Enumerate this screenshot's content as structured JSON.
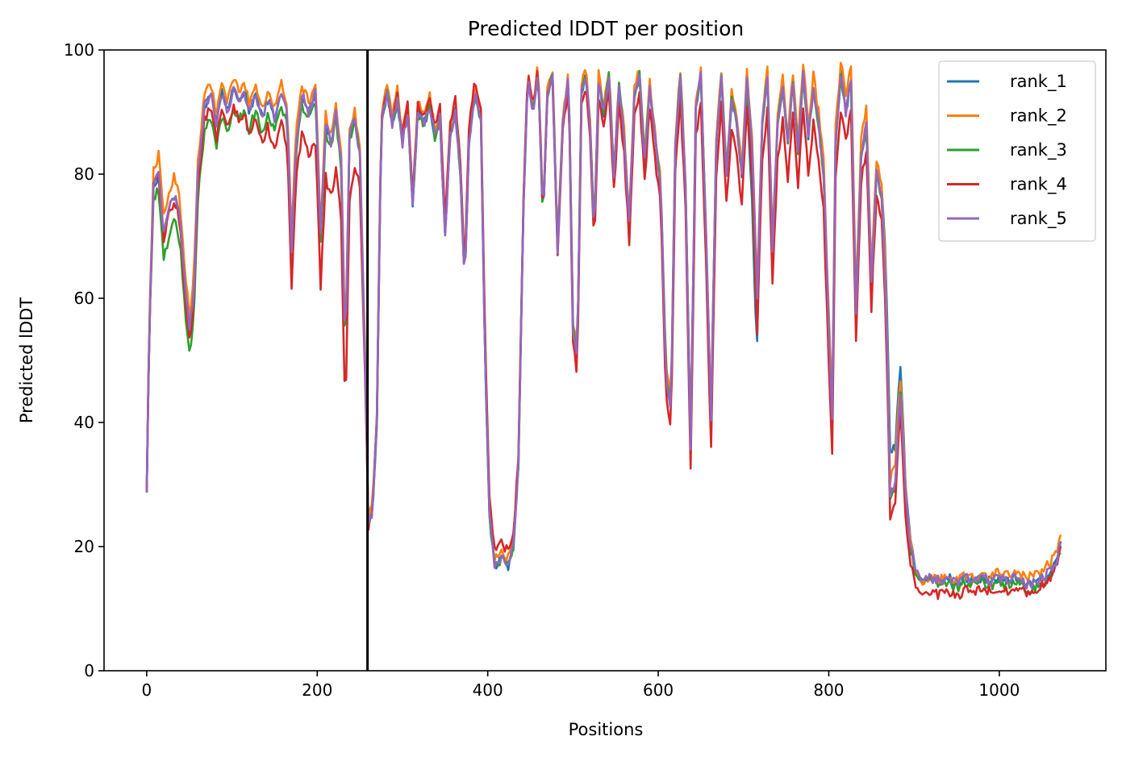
{
  "chart_data": {
    "type": "line",
    "title": "Predicted lDDT per position",
    "xlabel": "Positions",
    "ylabel": "Predicted lDDT",
    "xlim": [
      -50,
      1125
    ],
    "ylim": [
      0,
      100
    ],
    "xticks": [
      0,
      200,
      400,
      600,
      800,
      1000
    ],
    "yticks": [
      0,
      20,
      40,
      60,
      80,
      100
    ],
    "grid": false,
    "legend_position": "top-right",
    "vertical_line": {
      "x": 259,
      "color": "#000000"
    },
    "series": [
      {
        "name": "rank_1",
        "color": "#1f77b4",
        "offset": [
          [
            0,
            0
          ],
          [
            700,
            0
          ],
          [
            713,
            -12
          ],
          [
            720,
            0
          ],
          [
            860,
            0
          ],
          [
            870,
            8
          ],
          [
            900,
            0
          ],
          [
            1075,
            0
          ]
        ]
      },
      {
        "name": "rank_2",
        "color": "#ff7f0e",
        "offset": [
          [
            0,
            0
          ],
          [
            10,
            3
          ],
          [
            30,
            3
          ],
          [
            60,
            2
          ],
          [
            100,
            1.5
          ],
          [
            300,
            1.5
          ],
          [
            500,
            1
          ],
          [
            700,
            1
          ],
          [
            880,
            3
          ],
          [
            900,
            0
          ],
          [
            1075,
            1.5
          ]
        ]
      },
      {
        "name": "rank_3",
        "color": "#2ca02c",
        "offset": [
          [
            0,
            0
          ],
          [
            20,
            -4
          ],
          [
            70,
            -4
          ],
          [
            110,
            -3
          ],
          [
            260,
            0
          ],
          [
            700,
            0
          ],
          [
            713,
            -8
          ],
          [
            720,
            0
          ],
          [
            1075,
            -1
          ]
        ]
      },
      {
        "name": "rank_4",
        "color": "#d62728",
        "offset": [
          [
            0,
            0
          ],
          [
            160,
            -5
          ],
          [
            200,
            -8
          ],
          [
            240,
            -10
          ],
          [
            260,
            0
          ],
          [
            410,
            3
          ],
          [
            500,
            -2
          ],
          [
            640,
            -4
          ],
          [
            670,
            -5
          ],
          [
            800,
            -6
          ],
          [
            860,
            -3
          ],
          [
            1075,
            -1
          ]
        ]
      },
      {
        "name": "rank_5",
        "color": "#9467bd",
        "offset": [
          [
            0,
            0
          ],
          [
            1075,
            0
          ]
        ]
      }
    ],
    "base_profile": [
      [
        0,
        29.5
      ],
      [
        3,
        55
      ],
      [
        8,
        78
      ],
      [
        14,
        80
      ],
      [
        20,
        70
      ],
      [
        26,
        74
      ],
      [
        33,
        77
      ],
      [
        39,
        73
      ],
      [
        45,
        62
      ],
      [
        50,
        55
      ],
      [
        55,
        60
      ],
      [
        60,
        80
      ],
      [
        68,
        91
      ],
      [
        75,
        93
      ],
      [
        82,
        88
      ],
      [
        88,
        93
      ],
      [
        95,
        90
      ],
      [
        102,
        94
      ],
      [
        108,
        92
      ],
      [
        115,
        93
      ],
      [
        120,
        90
      ],
      [
        128,
        93
      ],
      [
        135,
        89
      ],
      [
        142,
        92
      ],
      [
        150,
        89
      ],
      [
        158,
        93
      ],
      [
        165,
        90
      ],
      [
        170,
        68
      ],
      [
        175,
        85
      ],
      [
        182,
        93
      ],
      [
        190,
        90
      ],
      [
        198,
        93
      ],
      [
        204,
        70
      ],
      [
        210,
        88
      ],
      [
        216,
        85
      ],
      [
        222,
        90
      ],
      [
        228,
        82
      ],
      [
        233,
        50
      ],
      [
        238,
        86
      ],
      [
        244,
        89
      ],
      [
        250,
        83
      ],
      [
        257,
        45
      ],
      [
        260,
        23
      ],
      [
        265,
        26
      ],
      [
        270,
        40
      ],
      [
        275,
        88
      ],
      [
        282,
        93
      ],
      [
        288,
        88
      ],
      [
        294,
        92
      ],
      [
        300,
        85
      ],
      [
        306,
        90
      ],
      [
        312,
        75
      ],
      [
        318,
        90
      ],
      [
        325,
        88
      ],
      [
        332,
        91
      ],
      [
        338,
        86
      ],
      [
        344,
        89
      ],
      [
        350,
        70
      ],
      [
        356,
        86
      ],
      [
        362,
        90
      ],
      [
        368,
        80
      ],
      [
        373,
        62
      ],
      [
        378,
        85
      ],
      [
        385,
        93
      ],
      [
        392,
        88
      ],
      [
        397,
        50
      ],
      [
        402,
        25
      ],
      [
        408,
        17
      ],
      [
        416,
        18
      ],
      [
        424,
        17
      ],
      [
        430,
        20
      ],
      [
        436,
        33
      ],
      [
        442,
        75
      ],
      [
        447,
        96
      ],
      [
        453,
        90
      ],
      [
        459,
        97
      ],
      [
        465,
        72
      ],
      [
        470,
        93
      ],
      [
        476,
        96
      ],
      [
        482,
        68
      ],
      [
        488,
        88
      ],
      [
        495,
        96
      ],
      [
        500,
        55
      ],
      [
        505,
        50
      ],
      [
        510,
        93
      ],
      [
        515,
        96
      ],
      [
        520,
        88
      ],
      [
        525,
        70
      ],
      [
        530,
        95
      ],
      [
        536,
        90
      ],
      [
        542,
        96
      ],
      [
        548,
        80
      ],
      [
        554,
        94
      ],
      [
        560,
        86
      ],
      [
        566,
        72
      ],
      [
        572,
        93
      ],
      [
        578,
        96
      ],
      [
        584,
        82
      ],
      [
        590,
        94
      ],
      [
        596,
        86
      ],
      [
        603,
        78
      ],
      [
        609,
        48
      ],
      [
        615,
        42
      ],
      [
        620,
        85
      ],
      [
        626,
        96
      ],
      [
        632,
        78
      ],
      [
        638,
        36
      ],
      [
        644,
        90
      ],
      [
        650,
        96
      ],
      [
        656,
        70
      ],
      [
        662,
        40
      ],
      [
        668,
        85
      ],
      [
        674,
        96
      ],
      [
        680,
        80
      ],
      [
        686,
        92
      ],
      [
        692,
        88
      ],
      [
        698,
        80
      ],
      [
        704,
        96
      ],
      [
        710,
        85
      ],
      [
        716,
        60
      ],
      [
        722,
        88
      ],
      [
        728,
        96
      ],
      [
        734,
        68
      ],
      [
        740,
        88
      ],
      [
        746,
        94
      ],
      [
        752,
        85
      ],
      [
        758,
        95
      ],
      [
        764,
        84
      ],
      [
        770,
        96
      ],
      [
        776,
        86
      ],
      [
        782,
        94
      ],
      [
        788,
        88
      ],
      [
        794,
        80
      ],
      [
        800,
        55
      ],
      [
        804,
        40
      ],
      [
        808,
        85
      ],
      [
        814,
        96
      ],
      [
        820,
        90
      ],
      [
        826,
        95
      ],
      [
        832,
        58
      ],
      [
        838,
        83
      ],
      [
        844,
        88
      ],
      [
        850,
        62
      ],
      [
        856,
        80
      ],
      [
        862,
        76
      ],
      [
        867,
        60
      ],
      [
        872,
        28
      ],
      [
        878,
        30
      ],
      [
        884,
        45
      ],
      [
        890,
        28
      ],
      [
        896,
        20
      ],
      [
        902,
        16
      ],
      [
        910,
        14.5
      ],
      [
        920,
        15
      ],
      [
        930,
        14.5
      ],
      [
        940,
        15
      ],
      [
        950,
        14
      ],
      [
        960,
        15
      ],
      [
        970,
        14.5
      ],
      [
        980,
        15
      ],
      [
        990,
        14.5
      ],
      [
        1000,
        15
      ],
      [
        1010,
        14.5
      ],
      [
        1020,
        15
      ],
      [
        1030,
        14
      ],
      [
        1040,
        14
      ],
      [
        1050,
        15
      ],
      [
        1060,
        16
      ],
      [
        1068,
        18
      ],
      [
        1073,
        21
      ]
    ]
  }
}
